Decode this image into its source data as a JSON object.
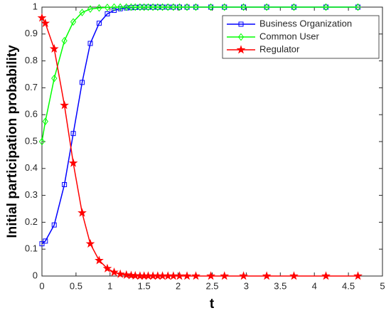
{
  "chart_data": {
    "type": "line",
    "xlabel": "t",
    "ylabel": "Initial participation probability",
    "x": [
      0,
      0.05,
      0.18,
      0.33,
      0.46,
      0.59,
      0.71,
      0.84,
      0.96,
      1.06,
      1.15,
      1.24,
      1.31,
      1.37,
      1.44,
      1.5,
      1.56,
      1.63,
      1.7,
      1.77,
      1.85,
      1.93,
      2.02,
      2.13,
      2.26,
      2.48,
      2.68,
      2.96,
      3.3,
      3.7,
      4.17,
      4.64
    ],
    "series": [
      {
        "name": "Business Organization",
        "color": "#0000ff",
        "marker": "square",
        "values": [
          0.12,
          0.13,
          0.19,
          0.34,
          0.53,
          0.72,
          0.865,
          0.94,
          0.975,
          0.988,
          0.994,
          0.997,
          0.998,
          0.999,
          1,
          1,
          1,
          1,
          1,
          1,
          1,
          1,
          1,
          1,
          1,
          1,
          1,
          1,
          1,
          1,
          1,
          1
        ]
      },
      {
        "name": "Common User",
        "color": "#00ff00",
        "marker": "diamond",
        "values": [
          0.5,
          0.575,
          0.735,
          0.875,
          0.945,
          0.98,
          0.993,
          0.997,
          0.999,
          1,
          1,
          1,
          1,
          1,
          1,
          1,
          1,
          1,
          1,
          1,
          1,
          1,
          1,
          1,
          1,
          1,
          1,
          1,
          1,
          1,
          1,
          1
        ]
      },
      {
        "name": "Regulator",
        "color": "#ff0000",
        "marker": "pentagram",
        "values": [
          0.96,
          0.94,
          0.845,
          0.635,
          0.42,
          0.235,
          0.12,
          0.058,
          0.028,
          0.014,
          0.007,
          0.004,
          0.002,
          0.001,
          0,
          0,
          0,
          0,
          0,
          0,
          0,
          0,
          0,
          0,
          0,
          0,
          0,
          0,
          0,
          0,
          0,
          0
        ]
      }
    ],
    "xlim": [
      0,
      5
    ],
    "xticks": [
      0,
      0.5,
      1,
      1.5,
      2,
      2.5,
      3,
      3.5,
      4,
      4.5,
      5
    ],
    "ylim": [
      0,
      1
    ],
    "yticks": [
      0,
      0.1,
      0.2,
      0.3,
      0.4,
      0.5,
      0.6,
      0.7,
      0.8,
      0.9,
      1
    ],
    "grid": false,
    "legend": "top-right"
  }
}
